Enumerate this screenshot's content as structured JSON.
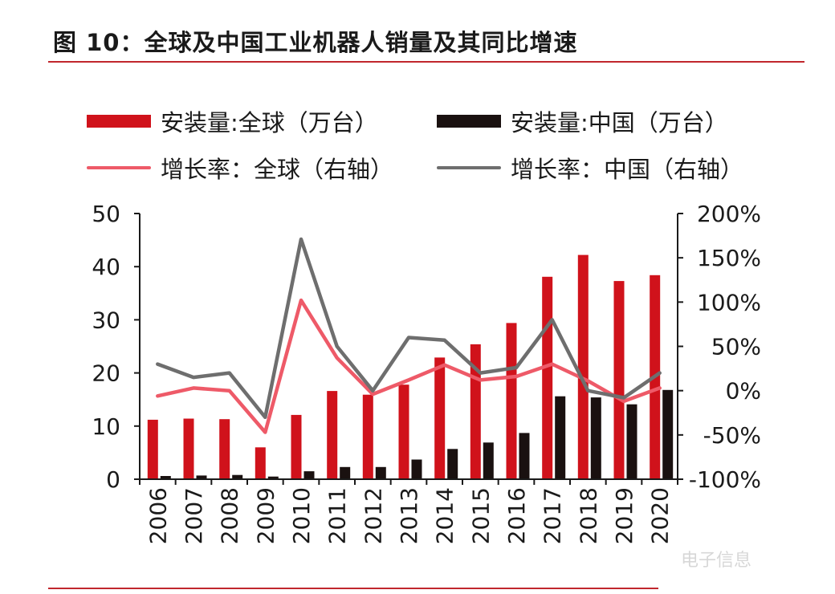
{
  "figure": {
    "title": "图 10：全球及中国工业机器人销量及其同比增速"
  },
  "watermark": "电子信息",
  "chart_data": {
    "type": "bar",
    "categories": [
      "2006",
      "2007",
      "2008",
      "2009",
      "2010",
      "2011",
      "2012",
      "2013",
      "2014",
      "2015",
      "2016",
      "2017",
      "2018",
      "2019",
      "2020"
    ],
    "series": [
      {
        "name": "安装量:全球（万台）",
        "kind": "bar",
        "axis": "left",
        "color": "#d0121b",
        "values": [
          11.2,
          11.4,
          11.3,
          6.0,
          12.1,
          16.6,
          15.9,
          17.8,
          22.9,
          25.4,
          29.4,
          38.1,
          42.2,
          37.3,
          38.4
        ]
      },
      {
        "name": "安装量:中国（万台）",
        "kind": "bar",
        "axis": "left",
        "color": "#1a1110",
        "values": [
          0.6,
          0.7,
          0.8,
          0.5,
          1.5,
          2.3,
          2.3,
          3.7,
          5.7,
          6.9,
          8.7,
          15.6,
          15.4,
          14.1,
          16.8
        ]
      },
      {
        "name": "增长率：全球（右轴）",
        "kind": "line",
        "axis": "right",
        "color": "#ee5a68",
        "values": [
          -6,
          3,
          0,
          -47,
          102,
          37,
          -4,
          12,
          29,
          12,
          16,
          30,
          11,
          -12,
          3
        ]
      },
      {
        "name": "增长率：中国（右轴）",
        "kind": "line",
        "axis": "right",
        "color": "#6e6e6e",
        "values": [
          30,
          15,
          20,
          -30,
          171,
          50,
          0,
          60,
          57,
          20,
          26,
          80,
          0,
          -8,
          20
        ]
      }
    ],
    "left_axis": {
      "ylim": [
        0,
        50
      ],
      "ticks": [
        0,
        10,
        20,
        30,
        40,
        50
      ],
      "tick_labels": [
        "0",
        "10",
        "20",
        "30",
        "40",
        "50"
      ]
    },
    "right_axis": {
      "ylim": [
        -100,
        200
      ],
      "ticks": [
        -100,
        -50,
        0,
        50,
        100,
        150,
        200
      ],
      "tick_labels": [
        "-100%",
        "-50%",
        "0%",
        "50%",
        "100%",
        "150%",
        "200%"
      ]
    },
    "legend_placement": "top",
    "grid": false
  }
}
